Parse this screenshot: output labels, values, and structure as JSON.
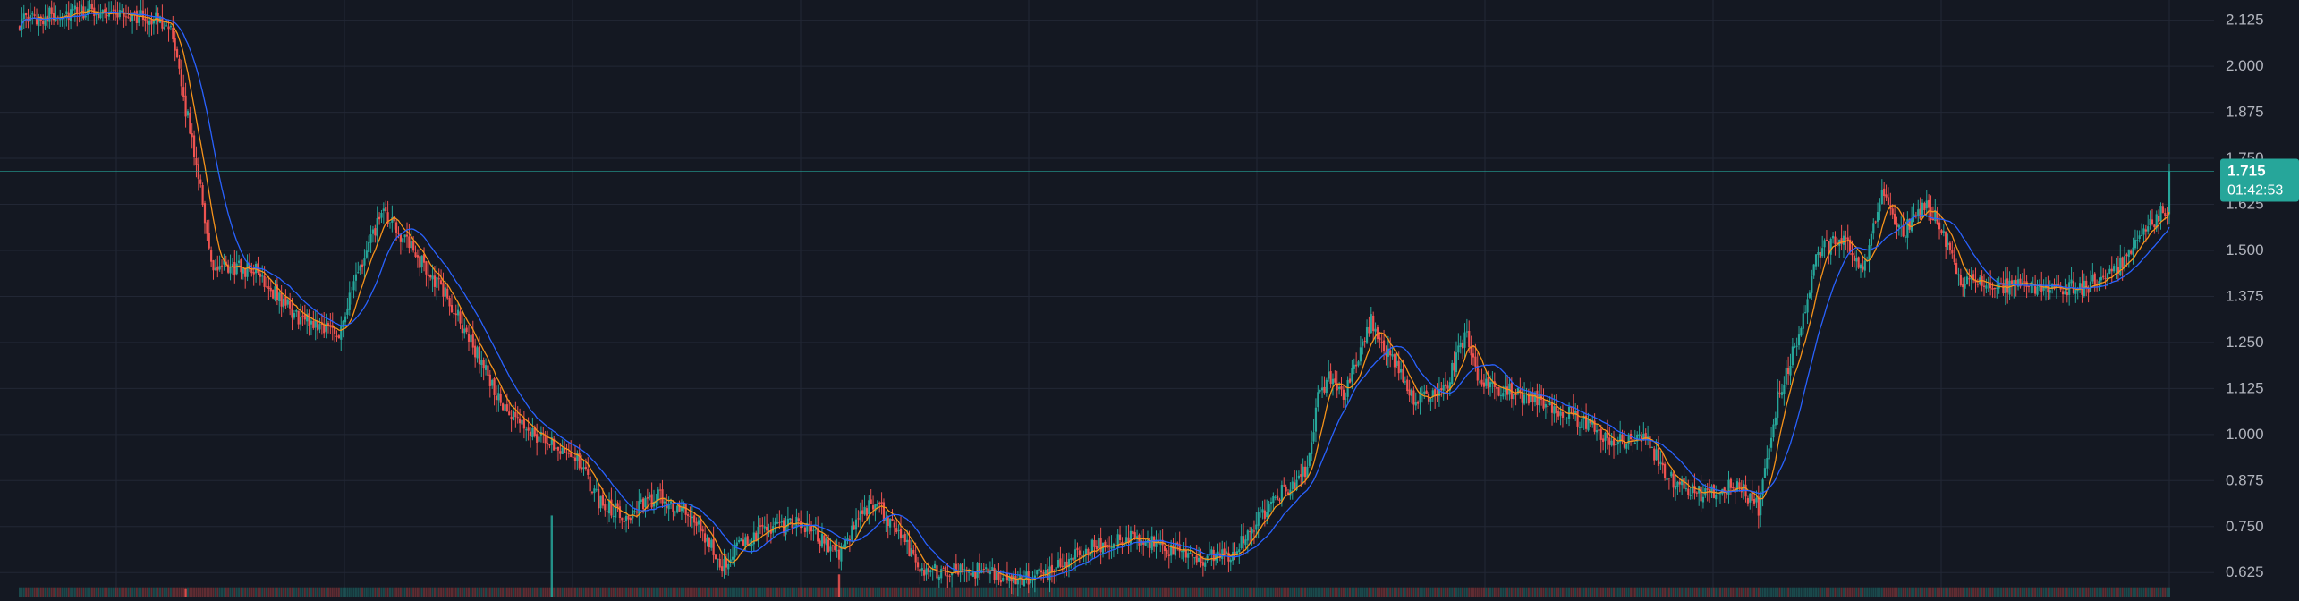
{
  "theme": {
    "background": "#141822",
    "grid": "#222735",
    "up": "#26a69a",
    "down": "#ef5350",
    "ma_fast": "#f7931a",
    "ma_slow": "#2962ff",
    "axis_text": "#b2b5be",
    "price_line": "#26a69a"
  },
  "chart_data": {
    "type": "candlestick",
    "y_axis_side": "right",
    "ylim": [
      0.56,
      2.18
    ],
    "y_ticks": [
      "2.125",
      "2.000",
      "1.875",
      "1.750",
      "1.625",
      "1.500",
      "1.375",
      "1.250",
      "1.125",
      "1.000",
      "0.875",
      "0.750",
      "0.625"
    ],
    "grid": true,
    "last_price": {
      "price": "1.715",
      "countdown": "01:42:53",
      "value": 1.715
    },
    "close_anchors": [
      [
        0,
        2.12
      ],
      [
        15,
        2.14
      ],
      [
        40,
        2.15
      ],
      [
        70,
        2.12
      ],
      [
        85,
        1.68
      ],
      [
        90,
        1.45
      ],
      [
        110,
        1.45
      ],
      [
        130,
        1.32
      ],
      [
        150,
        1.28
      ],
      [
        158,
        1.42
      ],
      [
        170,
        1.6
      ],
      [
        178,
        1.55
      ],
      [
        200,
        1.38
      ],
      [
        215,
        1.22
      ],
      [
        228,
        1.06
      ],
      [
        245,
        0.99
      ],
      [
        260,
        0.95
      ],
      [
        272,
        0.82
      ],
      [
        285,
        0.78
      ],
      [
        300,
        0.83
      ],
      [
        315,
        0.78
      ],
      [
        330,
        0.65
      ],
      [
        345,
        0.73
      ],
      [
        365,
        0.76
      ],
      [
        385,
        0.68
      ],
      [
        400,
        0.82
      ],
      [
        410,
        0.76
      ],
      [
        425,
        0.63
      ],
      [
        450,
        0.63
      ],
      [
        470,
        0.6
      ],
      [
        485,
        0.63
      ],
      [
        500,
        0.69
      ],
      [
        520,
        0.72
      ],
      [
        540,
        0.69
      ],
      [
        555,
        0.66
      ],
      [
        570,
        0.68
      ],
      [
        590,
        0.83
      ],
      [
        605,
        0.9
      ],
      [
        610,
        1.1
      ],
      [
        617,
        1.17
      ],
      [
        622,
        1.1
      ],
      [
        628,
        1.2
      ],
      [
        635,
        1.31
      ],
      [
        645,
        1.2
      ],
      [
        655,
        1.09
      ],
      [
        670,
        1.13
      ],
      [
        680,
        1.28
      ],
      [
        685,
        1.14
      ],
      [
        700,
        1.12
      ],
      [
        720,
        1.08
      ],
      [
        735,
        1.03
      ],
      [
        750,
        0.98
      ],
      [
        763,
        1.0
      ],
      [
        775,
        0.88
      ],
      [
        790,
        0.84
      ],
      [
        808,
        0.86
      ],
      [
        817,
        0.8
      ],
      [
        826,
        1.1
      ],
      [
        835,
        1.25
      ],
      [
        845,
        1.5
      ],
      [
        856,
        1.53
      ],
      [
        866,
        1.44
      ],
      [
        875,
        1.65
      ],
      [
        885,
        1.55
      ],
      [
        895,
        1.62
      ],
      [
        902,
        1.58
      ],
      [
        912,
        1.42
      ],
      [
        930,
        1.4
      ],
      [
        950,
        1.4
      ],
      [
        970,
        1.4
      ],
      [
        985,
        1.45
      ],
      [
        995,
        1.52
      ],
      [
        1005,
        1.6
      ],
      [
        1010,
        1.62
      ]
    ],
    "volume_spikes": [
      [
        10,
        0.55
      ],
      [
        78,
        0.58
      ],
      [
        250,
        0.78
      ],
      [
        385,
        0.62
      ],
      [
        602,
        0.4
      ],
      [
        608,
        0.35
      ],
      [
        818,
        0.52
      ]
    ],
    "moving_averages": [
      {
        "period": 9,
        "color_key": "ma_fast"
      },
      {
        "period": 21,
        "color_key": "ma_slow"
      }
    ]
  }
}
